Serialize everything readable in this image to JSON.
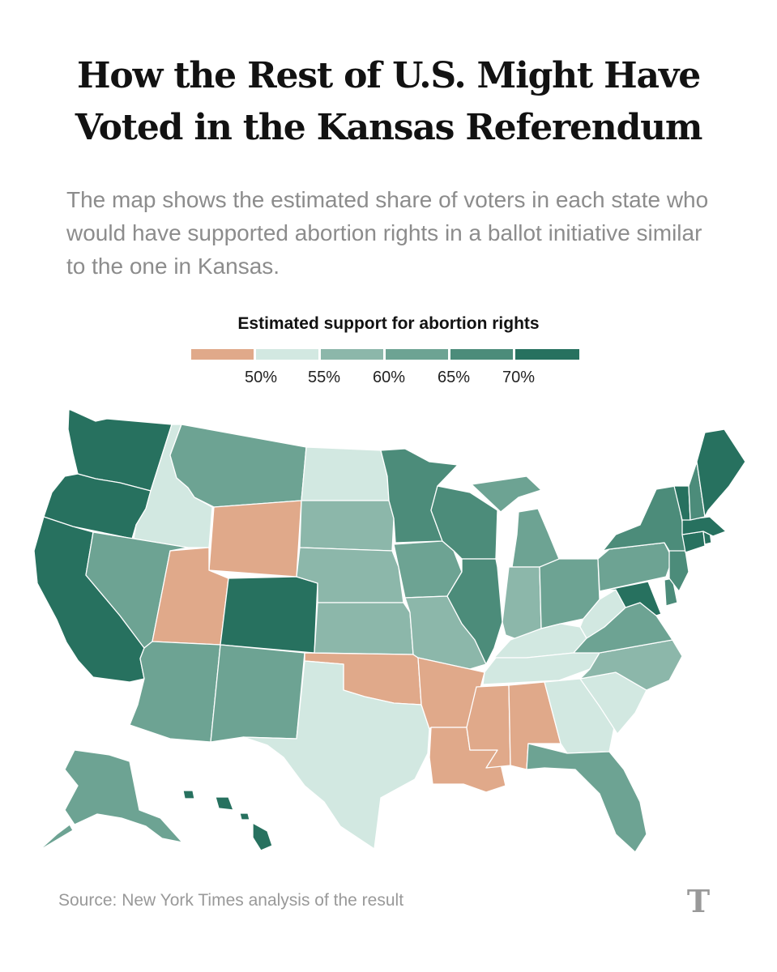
{
  "title_line1": "How the Rest of U.S. Might Have",
  "title_line2": "Voted in the Kansas Referendum",
  "subtitle": "The map shows the estimated share of voters in each state who would have supported abortion rights in a ballot initiative similar to the one in Kansas.",
  "legend": {
    "title": "Estimated support for abortion rights",
    "ticks": [
      "50%",
      "55%",
      "60%",
      "65%",
      "70%"
    ],
    "colors": [
      "#e0a98a",
      "#d2e8e1",
      "#8cb7aa",
      "#6da393",
      "#4c8c7a",
      "#27715f"
    ]
  },
  "state_support_bins": {
    "WA": 5,
    "OR": 5,
    "CA": 5,
    "ID": 1,
    "NV": 3,
    "MT": 3,
    "WY": 0,
    "UT": 0,
    "AZ": 3,
    "CO": 5,
    "NM": 3,
    "ND": 1,
    "SD": 2,
    "NE": 2,
    "KS": 2,
    "OK": 0,
    "TX": 1,
    "MN": 4,
    "IA": 3,
    "MO": 2,
    "AR": 0,
    "LA": 0,
    "WI": 4,
    "IL": 4,
    "MI": 3,
    "IN": 2,
    "OH": 3,
    "KY": 1,
    "TN": 1,
    "MS": 0,
    "AL": 0,
    "GA": 1,
    "FL": 3,
    "SC": 1,
    "NC": 2,
    "VA": 3,
    "WV": 1,
    "PA": 3,
    "NY": 4,
    "MD": 5,
    "DE": 4,
    "NJ": 4,
    "CT": 5,
    "RI": 5,
    "MA": 5,
    "VT": 5,
    "NH": 4,
    "ME": 5,
    "AK": 3,
    "HI": 5
  },
  "source": "Source: New York Times analysis of the result",
  "logo_letter": "T"
}
